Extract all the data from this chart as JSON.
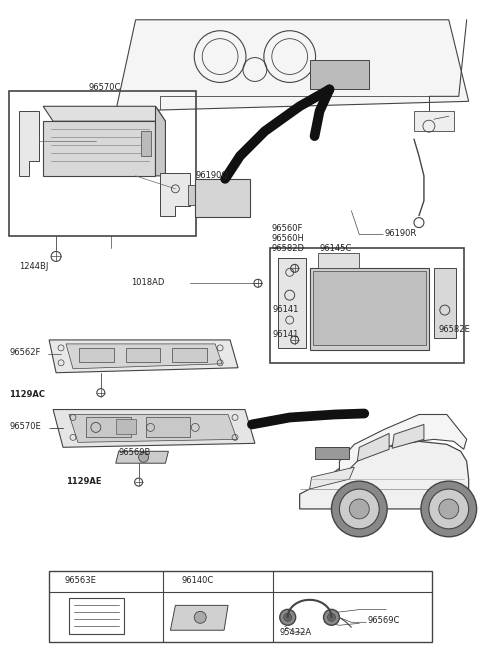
{
  "bg_color": "#ffffff",
  "fig_width": 4.8,
  "fig_height": 6.56,
  "dpi": 100,
  "line_color": "#444444",
  "text_color": "#222222",
  "label_fontsize": 6.0,
  "bold_labels": [
    "1244BJ",
    "1129AC",
    "1129AE"
  ]
}
